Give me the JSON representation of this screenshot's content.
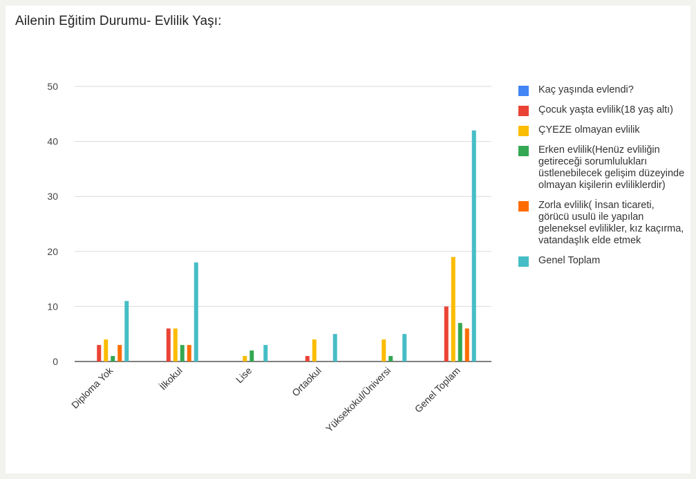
{
  "chart_data": {
    "type": "bar",
    "title": "Ailenin Eğitim Durumu- Evlilik Yaşı:",
    "categories": [
      "Diploma Yok",
      "İlkokul",
      "Lise",
      "Ortaokul",
      "Yüksekokul/Üniversi",
      "Genel Toplam"
    ],
    "ylim": [
      0,
      50
    ],
    "yticks": [
      0,
      10,
      20,
      30,
      40,
      50
    ],
    "grid": true,
    "legend_position": "right",
    "series": [
      {
        "name": "Kaç yaşında evlendi?",
        "color": "#4285F4",
        "values": [
          0,
          0,
          0,
          0,
          0,
          0
        ]
      },
      {
        "name": "Çocuk yaşta evlilik(18 yaş altı)",
        "color": "#EA4335",
        "values": [
          3,
          6,
          0,
          1,
          0,
          10
        ]
      },
      {
        "name": "ÇYEZE olmayan evlilik",
        "color": "#FBBC04",
        "values": [
          4,
          6,
          1,
          4,
          4,
          19
        ]
      },
      {
        "name": "Erken evlilik(Henüz evliliğin getireceği sorumlulukları üstlenebilecek gelişim düzeyinde olmayan kişilerin evliliklerdir)",
        "color": "#34A853",
        "values": [
          1,
          3,
          2,
          0,
          1,
          7
        ]
      },
      {
        "name": "Zorla evlilik( İnsan ticareti, görücü usulü ile yapılan geleneksel evlilikler, kız kaçırma, vatandaşlık elde etmek",
        "color": "#FF6D01",
        "values": [
          3,
          3,
          0,
          0,
          0,
          6
        ]
      },
      {
        "name": "Genel Toplam",
        "color": "#46BDC6",
        "values": [
          11,
          18,
          3,
          5,
          5,
          42
        ]
      }
    ]
  }
}
